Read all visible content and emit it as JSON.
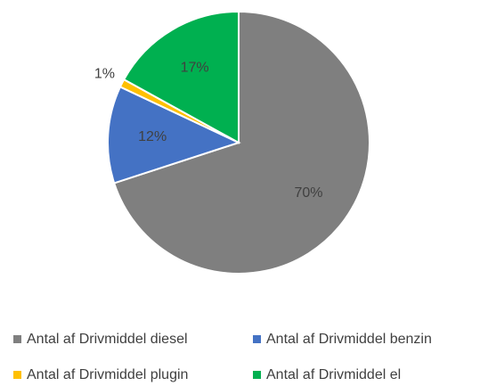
{
  "chart_data": {
    "type": "pie",
    "categories": [
      "Antal af Drivmiddel diesel",
      "Antal af Drivmiddel benzin",
      "Antal af Drivmiddel plugin",
      "Antal af Drivmiddel el"
    ],
    "values": [
      70,
      12,
      1,
      17
    ],
    "value_labels": [
      "70%",
      "12%",
      "1%",
      "17%"
    ],
    "colors": [
      "#7f7f7f",
      "#4472c4",
      "#ffc000",
      "#00b050"
    ]
  }
}
